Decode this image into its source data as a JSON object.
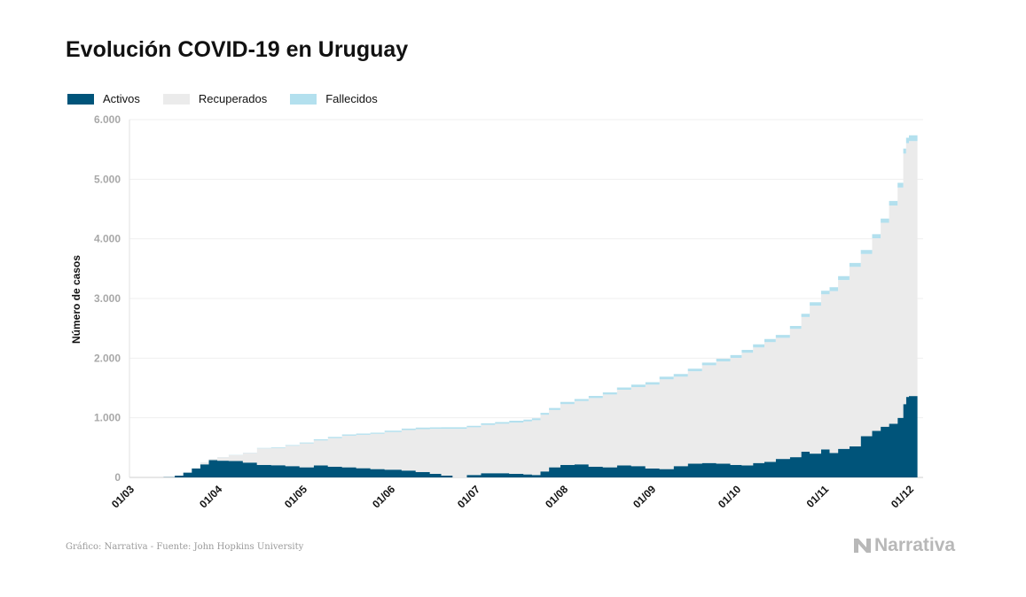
{
  "header": {
    "title": "Evolución COVID-19 en Uruguay"
  },
  "legend": [
    {
      "label": "Activos",
      "color": "#00547a"
    },
    {
      "label": "Recuperados",
      "color": "#ebebeb"
    },
    {
      "label": "Fallecidos",
      "color": "#b3e0ee"
    }
  ],
  "footer": {
    "source": "Gráfico: Narrativa - Fuente: John Hopkins University",
    "brand": "Narrativa"
  },
  "chart_data": {
    "type": "area",
    "stacked": true,
    "title": "Evolución COVID-19 en Uruguay",
    "ylabel": "Número de casos",
    "xlabel": "",
    "ylim": [
      0,
      6000
    ],
    "yticks": [
      0,
      1000,
      2000,
      3000,
      4000,
      5000,
      6000
    ],
    "ytick_labels": [
      "0",
      "1.000",
      "2.000",
      "3.000",
      "4.000",
      "5.000",
      "6.000"
    ],
    "xlim": [
      "2020-03-01",
      "2020-12-06"
    ],
    "xticks": [
      "2020-03-01",
      "2020-04-01",
      "2020-05-01",
      "2020-06-01",
      "2020-07-01",
      "2020-08-01",
      "2020-09-01",
      "2020-10-01",
      "2020-11-01",
      "2020-12-01"
    ],
    "xtick_labels": [
      "01/03",
      "01/04",
      "01/05",
      "01/06",
      "01/07",
      "01/08",
      "01/09",
      "01/10",
      "01/11",
      "01/12"
    ],
    "grid": true,
    "legend_position": "top-left",
    "series": [
      {
        "name": "Activos",
        "color": "#00547a",
        "points": [
          [
            "2020-03-13",
            4
          ],
          [
            "2020-03-17",
            29
          ],
          [
            "2020-03-20",
            80
          ],
          [
            "2020-03-23",
            150
          ],
          [
            "2020-03-26",
            220
          ],
          [
            "2020-03-29",
            290
          ],
          [
            "2020-04-01",
            280
          ],
          [
            "2020-04-05",
            275
          ],
          [
            "2020-04-10",
            250
          ],
          [
            "2020-04-15",
            210
          ],
          [
            "2020-04-20",
            205
          ],
          [
            "2020-04-25",
            190
          ],
          [
            "2020-04-30",
            170
          ],
          [
            "2020-05-05",
            200
          ],
          [
            "2020-05-10",
            180
          ],
          [
            "2020-05-15",
            170
          ],
          [
            "2020-05-20",
            155
          ],
          [
            "2020-05-25",
            140
          ],
          [
            "2020-05-30",
            130
          ],
          [
            "2020-06-05",
            115
          ],
          [
            "2020-06-10",
            90
          ],
          [
            "2020-06-15",
            60
          ],
          [
            "2020-06-19",
            30
          ],
          [
            "2020-06-23",
            0
          ],
          [
            "2020-06-28",
            40
          ],
          [
            "2020-07-03",
            70
          ],
          [
            "2020-07-08",
            70
          ],
          [
            "2020-07-13",
            60
          ],
          [
            "2020-07-18",
            50
          ],
          [
            "2020-07-21",
            40
          ],
          [
            "2020-07-24",
            100
          ],
          [
            "2020-07-27",
            170
          ],
          [
            "2020-07-31",
            210
          ],
          [
            "2020-08-05",
            220
          ],
          [
            "2020-08-10",
            180
          ],
          [
            "2020-08-15",
            170
          ],
          [
            "2020-08-20",
            200
          ],
          [
            "2020-08-25",
            190
          ],
          [
            "2020-08-30",
            150
          ],
          [
            "2020-09-04",
            140
          ],
          [
            "2020-09-09",
            190
          ],
          [
            "2020-09-14",
            230
          ],
          [
            "2020-09-19",
            240
          ],
          [
            "2020-09-24",
            230
          ],
          [
            "2020-09-29",
            210
          ],
          [
            "2020-10-03",
            200
          ],
          [
            "2020-10-07",
            240
          ],
          [
            "2020-10-11",
            260
          ],
          [
            "2020-10-15",
            310
          ],
          [
            "2020-10-20",
            340
          ],
          [
            "2020-10-24",
            430
          ],
          [
            "2020-10-27",
            400
          ],
          [
            "2020-10-31",
            470
          ],
          [
            "2020-11-03",
            410
          ],
          [
            "2020-11-06",
            480
          ],
          [
            "2020-11-10",
            520
          ],
          [
            "2020-11-14",
            690
          ],
          [
            "2020-11-18",
            780
          ],
          [
            "2020-11-21",
            850
          ],
          [
            "2020-11-24",
            900
          ],
          [
            "2020-11-27",
            1000
          ],
          [
            "2020-11-29",
            1230
          ],
          [
            "2020-11-30",
            1350
          ],
          [
            "2020-12-01",
            1365
          ]
        ]
      },
      {
        "name": "Recuperados",
        "color": "#ebebeb",
        "points": [
          [
            "2020-03-13",
            0
          ],
          [
            "2020-03-17",
            0
          ],
          [
            "2020-03-20",
            0
          ],
          [
            "2020-03-23",
            10
          ],
          [
            "2020-03-26",
            30
          ],
          [
            "2020-03-29",
            20
          ],
          [
            "2020-04-01",
            60
          ],
          [
            "2020-04-05",
            100
          ],
          [
            "2020-04-10",
            160
          ],
          [
            "2020-04-15",
            275
          ],
          [
            "2020-04-20",
            290
          ],
          [
            "2020-04-25",
            340
          ],
          [
            "2020-04-30",
            400
          ],
          [
            "2020-05-05",
            420
          ],
          [
            "2020-05-10",
            480
          ],
          [
            "2020-05-15",
            530
          ],
          [
            "2020-05-20",
            560
          ],
          [
            "2020-05-25",
            590
          ],
          [
            "2020-05-30",
            630
          ],
          [
            "2020-06-05",
            680
          ],
          [
            "2020-06-10",
            720
          ],
          [
            "2020-06-15",
            755
          ],
          [
            "2020-06-19",
            785
          ],
          [
            "2020-06-23",
            815
          ],
          [
            "2020-06-28",
            800
          ],
          [
            "2020-07-03",
            810
          ],
          [
            "2020-07-08",
            830
          ],
          [
            "2020-07-13",
            860
          ],
          [
            "2020-07-18",
            890
          ],
          [
            "2020-07-21",
            920
          ],
          [
            "2020-07-24",
            950
          ],
          [
            "2020-07-27",
            960
          ],
          [
            "2020-07-31",
            1020
          ],
          [
            "2020-08-05",
            1060
          ],
          [
            "2020-08-10",
            1150
          ],
          [
            "2020-08-15",
            1220
          ],
          [
            "2020-08-20",
            1270
          ],
          [
            "2020-08-25",
            1325
          ],
          [
            "2020-08-30",
            1405
          ],
          [
            "2020-09-04",
            1505
          ],
          [
            "2020-09-09",
            1500
          ],
          [
            "2020-09-14",
            1550
          ],
          [
            "2020-09-19",
            1640
          ],
          [
            "2020-09-24",
            1715
          ],
          [
            "2020-09-29",
            1795
          ],
          [
            "2020-10-03",
            1890
          ],
          [
            "2020-10-07",
            1940
          ],
          [
            "2020-10-11",
            2010
          ],
          [
            "2020-10-15",
            2030
          ],
          [
            "2020-10-20",
            2150
          ],
          [
            "2020-10-24",
            2260
          ],
          [
            "2020-10-27",
            2480
          ],
          [
            "2020-10-31",
            2600
          ],
          [
            "2020-11-03",
            2715
          ],
          [
            "2020-11-06",
            2830
          ],
          [
            "2020-11-10",
            3010
          ],
          [
            "2020-11-14",
            3055
          ],
          [
            "2020-11-18",
            3230
          ],
          [
            "2020-11-21",
            3420
          ],
          [
            "2020-11-24",
            3660
          ],
          [
            "2020-11-27",
            3860
          ],
          [
            "2020-11-29",
            4200
          ],
          [
            "2020-11-30",
            4255
          ],
          [
            "2020-12-01",
            4275
          ]
        ]
      },
      {
        "name": "Fallecidos",
        "color": "#b3e0ee",
        "points": [
          [
            "2020-03-13",
            0
          ],
          [
            "2020-03-17",
            0
          ],
          [
            "2020-03-20",
            0
          ],
          [
            "2020-03-23",
            0
          ],
          [
            "2020-03-26",
            1
          ],
          [
            "2020-03-29",
            1
          ],
          [
            "2020-04-01",
            1
          ],
          [
            "2020-04-05",
            3
          ],
          [
            "2020-04-10",
            5
          ],
          [
            "2020-04-15",
            8
          ],
          [
            "2020-04-20",
            10
          ],
          [
            "2020-04-25",
            12
          ],
          [
            "2020-04-30",
            15
          ],
          [
            "2020-05-05",
            18
          ],
          [
            "2020-05-10",
            19
          ],
          [
            "2020-05-15",
            20
          ],
          [
            "2020-05-20",
            20
          ],
          [
            "2020-05-25",
            20
          ],
          [
            "2020-05-30",
            22
          ],
          [
            "2020-06-05",
            23
          ],
          [
            "2020-06-10",
            24
          ],
          [
            "2020-06-15",
            24
          ],
          [
            "2020-06-19",
            25
          ],
          [
            "2020-06-23",
            25
          ],
          [
            "2020-06-28",
            26
          ],
          [
            "2020-07-03",
            27
          ],
          [
            "2020-07-08",
            28
          ],
          [
            "2020-07-13",
            30
          ],
          [
            "2020-07-18",
            30
          ],
          [
            "2020-07-21",
            32
          ],
          [
            "2020-07-24",
            33
          ],
          [
            "2020-07-27",
            34
          ],
          [
            "2020-07-31",
            35
          ],
          [
            "2020-08-05",
            35
          ],
          [
            "2020-08-10",
            36
          ],
          [
            "2020-08-15",
            36
          ],
          [
            "2020-08-20",
            38
          ],
          [
            "2020-08-25",
            40
          ],
          [
            "2020-08-30",
            42
          ],
          [
            "2020-09-04",
            43
          ],
          [
            "2020-09-09",
            44
          ],
          [
            "2020-09-14",
            44
          ],
          [
            "2020-09-19",
            45
          ],
          [
            "2020-09-24",
            45
          ],
          [
            "2020-09-29",
            46
          ],
          [
            "2020-10-03",
            48
          ],
          [
            "2020-10-07",
            50
          ],
          [
            "2020-10-11",
            50
          ],
          [
            "2020-10-15",
            50
          ],
          [
            "2020-10-20",
            50
          ],
          [
            "2020-10-24",
            55
          ],
          [
            "2020-10-27",
            56
          ],
          [
            "2020-10-31",
            60
          ],
          [
            "2020-11-03",
            63
          ],
          [
            "2020-11-06",
            65
          ],
          [
            "2020-11-10",
            66
          ],
          [
            "2020-11-14",
            67
          ],
          [
            "2020-11-18",
            68
          ],
          [
            "2020-11-21",
            70
          ],
          [
            "2020-11-24",
            75
          ],
          [
            "2020-11-27",
            80
          ],
          [
            "2020-11-29",
            85
          ],
          [
            "2020-11-30",
            90
          ],
          [
            "2020-12-01",
            95
          ]
        ]
      }
    ]
  }
}
